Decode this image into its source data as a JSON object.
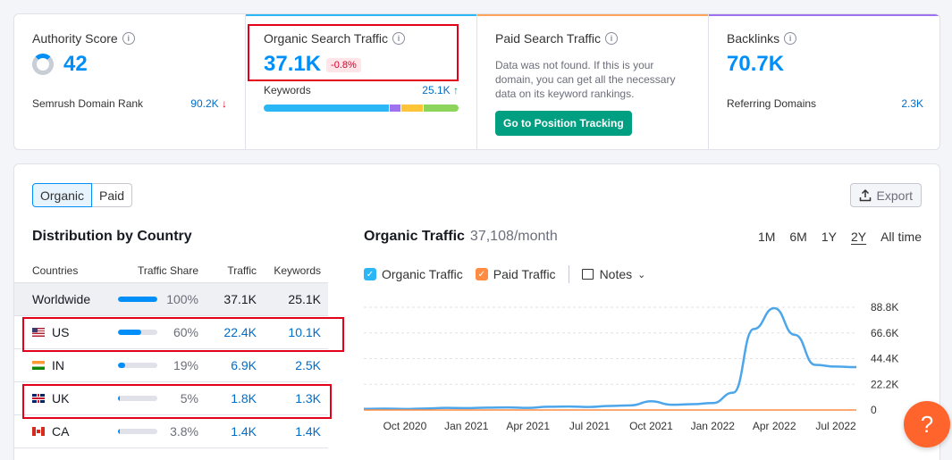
{
  "cards": {
    "authority": {
      "title": "Authority Score",
      "value": "42",
      "rank_label": "Semrush Domain Rank",
      "rank_value": "90.2K",
      "rank_arrow": "↓"
    },
    "organic": {
      "title": "Organic Search Traffic",
      "value": "37.1K",
      "change": "-0.8%",
      "keywords_label": "Keywords",
      "keywords_value": "25.1K",
      "keywords_arrow": "↑"
    },
    "paid": {
      "title": "Paid Search Traffic",
      "message": "Data was not found. If this is your domain, you can get all the necessary data on its keyword rankings.",
      "button": "Go to Position Tracking"
    },
    "backlinks": {
      "title": "Backlinks",
      "value": "70.7K",
      "ref_label": "Referring Domains",
      "ref_value": "2.3K"
    }
  },
  "toggle": {
    "organic": "Organic",
    "paid": "Paid"
  },
  "export_label": "Export",
  "distribution": {
    "title": "Distribution by Country",
    "headers": {
      "country": "Countries",
      "share": "Traffic Share",
      "traffic": "Traffic",
      "keywords": "Keywords"
    },
    "rows": [
      {
        "country": "Worldwide",
        "share": "100%",
        "share_value": 100,
        "traffic": "37.1K",
        "keywords": "25.1K"
      },
      {
        "country": "US",
        "share": "60%",
        "share_value": 60,
        "traffic": "22.4K",
        "keywords": "10.1K"
      },
      {
        "country": "IN",
        "share": "19%",
        "share_value": 19,
        "traffic": "6.9K",
        "keywords": "2.5K"
      },
      {
        "country": "UK",
        "share": "5%",
        "share_value": 5,
        "traffic": "1.8K",
        "keywords": "1.3K"
      },
      {
        "country": "CA",
        "share": "3.8%",
        "share_value": 3.8,
        "traffic": "1.4K",
        "keywords": "1.4K"
      }
    ]
  },
  "traffic_panel": {
    "title": "Organic Traffic",
    "subtitle": "37,108/month",
    "periods": [
      "1M",
      "6M",
      "1Y",
      "2Y",
      "All time"
    ],
    "selected_period": "2Y",
    "legend": {
      "organic": "Organic Traffic",
      "paid": "Paid Traffic",
      "notes": "Notes"
    }
  },
  "colors": {
    "accent": "#008ff8",
    "organic_line": "#4da6ea",
    "paid_line": "#ff8c42",
    "green_button": "#009f81",
    "help": "#ff642d"
  },
  "chart_data": {
    "type": "line",
    "x": [
      "2020-08",
      "2020-09",
      "2020-10",
      "2020-11",
      "2020-12",
      "2021-01",
      "2021-02",
      "2021-03",
      "2021-04",
      "2021-05",
      "2021-06",
      "2021-07",
      "2021-08",
      "2021-09",
      "2021-10",
      "2021-11",
      "2021-12",
      "2022-01",
      "2022-02",
      "2022-03",
      "2022-04",
      "2022-05",
      "2022-06",
      "2022-07",
      "2022-08"
    ],
    "x_tick_labels": [
      "Oct 2020",
      "Jan 2021",
      "Apr 2021",
      "Jul 2021",
      "Oct 2021",
      "Jan 2022",
      "Apr 2022",
      "Jul 2022"
    ],
    "x_tick_positions": [
      "2020-10",
      "2021-01",
      "2021-04",
      "2021-07",
      "2021-10",
      "2022-01",
      "2022-04",
      "2022-07"
    ],
    "series": [
      {
        "values": [
          1000,
          1200,
          900,
          1300,
          1800,
          1600,
          2000,
          2200,
          1800,
          2800,
          3000,
          2600,
          3500,
          4000,
          7500,
          4500,
          5000,
          6000,
          15000,
          70000,
          88000,
          65000,
          39000,
          37500,
          37100
        ]
      },
      {
        "values": [
          0,
          0,
          0,
          0,
          0,
          0,
          0,
          0,
          0,
          0,
          0,
          0,
          0,
          0,
          0,
          0,
          0,
          0,
          0,
          0,
          0,
          0,
          0,
          0,
          0
        ]
      }
    ],
    "y_tick_labels": [
      "0",
      "22.2K",
      "44.4K",
      "66.6K",
      "88.8K"
    ],
    "ylim": [
      0,
      88800
    ],
    "grid": true
  }
}
